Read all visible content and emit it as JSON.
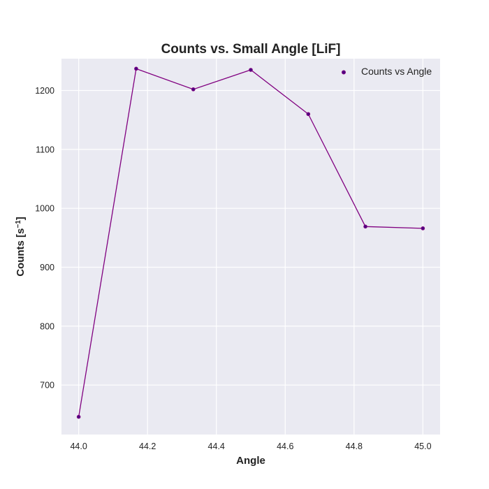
{
  "chart_data": {
    "type": "line",
    "title": "Counts vs. Small Angle [LiF]",
    "xlabel": "Angle",
    "ylabel_main": "Counts [s",
    "ylabel_sup": "−1",
    "ylabel_close": "]",
    "xlim": [
      43.95,
      45.05
    ],
    "ylim": [
      616,
      1254
    ],
    "x_ticks": [
      44.0,
      44.2,
      44.4,
      44.6,
      44.8,
      45.0
    ],
    "x_tick_labels": [
      "44.0",
      "44.2",
      "44.4",
      "44.6",
      "44.8",
      "45.0"
    ],
    "y_ticks": [
      700,
      800,
      900,
      1000,
      1100,
      1200
    ],
    "y_tick_labels": [
      "700",
      "800",
      "900",
      "1000",
      "1100",
      "1200"
    ],
    "grid": true,
    "legend_position": "top-right",
    "series": [
      {
        "name": "Counts vs Angle",
        "x": [
          44.0,
          44.167,
          44.333,
          44.5,
          44.667,
          44.833,
          45.0
        ],
        "y": [
          646,
          1237,
          1202,
          1235,
          1160,
          969,
          966
        ],
        "color": "#800080"
      }
    ],
    "colors": {
      "plot_background": "#eaeaf2",
      "grid": "#ffffff",
      "line": "#800080",
      "marker": "#4b0082"
    }
  }
}
